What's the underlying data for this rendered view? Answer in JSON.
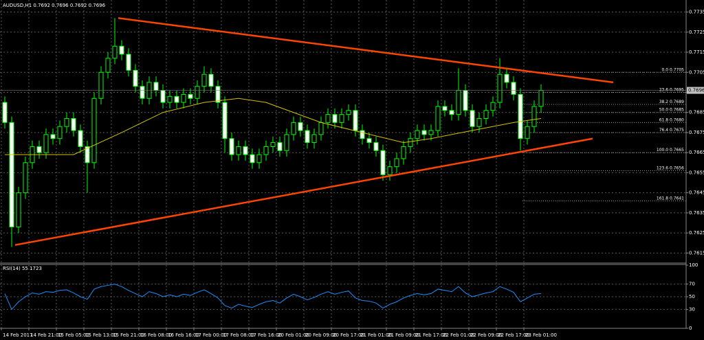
{
  "chart_data": {
    "type": "candlestick",
    "title": "AUDUSD,H1 0.7692 0.7696 0.7692 0.7696",
    "categories": [
      "14 Feb 2017",
      null,
      null,
      null,
      "14 Feb 21:00",
      null,
      null,
      null,
      "15 Feb 05:00",
      null,
      null,
      null,
      "15 Feb 13:00",
      null,
      null,
      null,
      "15 Feb 21:00",
      null,
      null,
      null,
      "16 Feb 08:00",
      null,
      null,
      null,
      "16 Feb 16:00",
      null,
      null,
      null,
      "17 Feb 00:00",
      null,
      null,
      null,
      "17 Feb 08:00",
      null,
      null,
      null,
      "17 Feb 16:00",
      null,
      null,
      null,
      "20 Feb 01:00",
      null,
      null,
      null,
      "20 Feb 09:00",
      null,
      null,
      null,
      "20 Feb 17:00",
      null,
      null,
      null,
      "21 Feb 01:00",
      null,
      null,
      null,
      "21 Feb 09:00",
      null,
      null,
      null,
      "21 Feb 17:00",
      null,
      null,
      null,
      "22 Feb 01:00",
      null,
      null,
      null,
      "22 Feb 09:00",
      null,
      null,
      null,
      "22 Feb 17:00",
      null,
      null,
      null,
      "23 Feb 01:00",
      null,
      null
    ],
    "candles": [
      [
        0.769,
        0.7693,
        0.7677,
        0.768
      ],
      [
        0.768,
        0.7683,
        0.7618,
        0.7628
      ],
      [
        0.7628,
        0.7648,
        0.7625,
        0.7645
      ],
      [
        0.7645,
        0.7663,
        0.7642,
        0.766
      ],
      [
        0.766,
        0.7671,
        0.7657,
        0.7668
      ],
      [
        0.7668,
        0.7671,
        0.7662,
        0.7665
      ],
      [
        0.7665,
        0.7677,
        0.7662,
        0.7674
      ],
      [
        0.7674,
        0.7677,
        0.7669,
        0.7672
      ],
      [
        0.7672,
        0.7681,
        0.7669,
        0.7678
      ],
      [
        0.7678,
        0.7685,
        0.7675,
        0.7682
      ],
      [
        0.7682,
        0.7685,
        0.7673,
        0.7676
      ],
      [
        0.7676,
        0.7679,
        0.7665,
        0.7668
      ],
      [
        0.7668,
        0.7671,
        0.7645,
        0.766
      ],
      [
        0.766,
        0.7695,
        0.7657,
        0.7692
      ],
      [
        0.7692,
        0.7708,
        0.7689,
        0.7705
      ],
      [
        0.7705,
        0.7715,
        0.7702,
        0.7712
      ],
      [
        0.7712,
        0.7732,
        0.7709,
        0.7718
      ],
      [
        0.7718,
        0.7721,
        0.7711,
        0.7714
      ],
      [
        0.7714,
        0.7717,
        0.7703,
        0.7706
      ],
      [
        0.7706,
        0.7709,
        0.7695,
        0.7698
      ],
      [
        0.7698,
        0.7701,
        0.7689,
        0.7692
      ],
      [
        0.7692,
        0.7703,
        0.7689,
        0.77
      ],
      [
        0.77,
        0.7703,
        0.7693,
        0.7696
      ],
      [
        0.7696,
        0.7699,
        0.7687,
        0.769
      ],
      [
        0.769,
        0.7696,
        0.7687,
        0.7693
      ],
      [
        0.7693,
        0.7696,
        0.7687,
        0.769
      ],
      [
        0.769,
        0.7697,
        0.7687,
        0.7694
      ],
      [
        0.7694,
        0.7697,
        0.7689,
        0.7692
      ],
      [
        0.7692,
        0.7701,
        0.7689,
        0.7698
      ],
      [
        0.7698,
        0.7708,
        0.7695,
        0.7704
      ],
      [
        0.7704,
        0.7707,
        0.7695,
        0.7698
      ],
      [
        0.7698,
        0.7701,
        0.7687,
        0.769
      ],
      [
        0.769,
        0.7693,
        0.7665,
        0.7672
      ],
      [
        0.7672,
        0.7675,
        0.7661,
        0.7664
      ],
      [
        0.7664,
        0.7671,
        0.7661,
        0.7668
      ],
      [
        0.7668,
        0.7671,
        0.7661,
        0.7664
      ],
      [
        0.7664,
        0.7667,
        0.7657,
        0.766
      ],
      [
        0.766,
        0.7667,
        0.7657,
        0.7664
      ],
      [
        0.7664,
        0.7671,
        0.7661,
        0.7668
      ],
      [
        0.7668,
        0.7673,
        0.7665,
        0.767
      ],
      [
        0.767,
        0.7673,
        0.7663,
        0.7666
      ],
      [
        0.7666,
        0.7677,
        0.7663,
        0.7674
      ],
      [
        0.7674,
        0.7683,
        0.7671,
        0.768
      ],
      [
        0.768,
        0.7683,
        0.7673,
        0.7676
      ],
      [
        0.7676,
        0.7679,
        0.7667,
        0.767
      ],
      [
        0.767,
        0.7677,
        0.7667,
        0.7674
      ],
      [
        0.7674,
        0.7683,
        0.7671,
        0.768
      ],
      [
        0.768,
        0.7687,
        0.7677,
        0.7684
      ],
      [
        0.7684,
        0.7687,
        0.7677,
        0.768
      ],
      [
        0.768,
        0.7687,
        0.7677,
        0.7684
      ],
      [
        0.7684,
        0.7689,
        0.7681,
        0.7686
      ],
      [
        0.7686,
        0.7689,
        0.7673,
        0.7676
      ],
      [
        0.7676,
        0.7679,
        0.7669,
        0.7672
      ],
      [
        0.7672,
        0.7675,
        0.7667,
        0.767
      ],
      [
        0.767,
        0.7673,
        0.7663,
        0.7666
      ],
      [
        0.7666,
        0.7669,
        0.7651,
        0.7654
      ],
      [
        0.7654,
        0.7661,
        0.7651,
        0.7658
      ],
      [
        0.7658,
        0.7665,
        0.7655,
        0.7662
      ],
      [
        0.7662,
        0.7671,
        0.7659,
        0.7668
      ],
      [
        0.7668,
        0.7675,
        0.7665,
        0.7672
      ],
      [
        0.7672,
        0.7679,
        0.7669,
        0.7676
      ],
      [
        0.7676,
        0.7679,
        0.7671,
        0.7674
      ],
      [
        0.7674,
        0.7679,
        0.7671,
        0.7676
      ],
      [
        0.7676,
        0.7691,
        0.7673,
        0.7688
      ],
      [
        0.7688,
        0.7691,
        0.7683,
        0.7686
      ],
      [
        0.7686,
        0.7689,
        0.7681,
        0.7684
      ],
      [
        0.7684,
        0.7707,
        0.7681,
        0.7696
      ],
      [
        0.7696,
        0.7699,
        0.7683,
        0.7686
      ],
      [
        0.7686,
        0.7689,
        0.7675,
        0.7678
      ],
      [
        0.7678,
        0.7685,
        0.7675,
        0.7682
      ],
      [
        0.7682,
        0.7689,
        0.7679,
        0.7686
      ],
      [
        0.7686,
        0.7693,
        0.7683,
        0.769
      ],
      [
        0.769,
        0.7712,
        0.7687,
        0.7704
      ],
      [
        0.7704,
        0.7707,
        0.7697,
        0.77
      ],
      [
        0.77,
        0.7703,
        0.7691,
        0.7694
      ],
      [
        0.7694,
        0.7697,
        0.7666,
        0.7672
      ],
      [
        0.7672,
        0.7681,
        0.7669,
        0.7678
      ],
      [
        0.7678,
        0.7691,
        0.7675,
        0.7688
      ],
      [
        0.7688,
        0.7699,
        0.7685,
        0.7696
      ]
    ],
    "up_color": "#00ff00",
    "ylim": [
      0.761,
      0.7741
    ],
    "yticks": [
      0.7735,
      0.7725,
      0.7715,
      0.7705,
      0.7695,
      0.7685,
      0.7675,
      0.7665,
      0.7655,
      0.7645,
      0.7635,
      0.7625,
      0.7615
    ],
    "last_price": 0.7696,
    "ma": {
      "color": "#d4c400",
      "x": [
        0,
        10,
        17,
        23,
        29,
        34,
        38,
        42,
        46,
        52,
        58,
        62,
        68,
        74,
        78
      ],
      "values": [
        0.7664,
        0.7664,
        0.7675,
        0.7685,
        0.769,
        0.7692,
        0.769,
        0.7685,
        0.768,
        0.7675,
        0.767,
        0.7672,
        0.7676,
        0.768,
        0.7682
      ]
    },
    "trendlines": [
      {
        "color": "#ff4500",
        "x": [
          16.5,
          88.5
        ],
        "y": [
          0.7732,
          0.77
        ]
      },
      {
        "color": "#ff4500",
        "x": [
          1.5,
          85.5
        ],
        "y": [
          0.7619,
          0.7672
        ]
      }
    ],
    "fib": [
      {
        "level": "0.0",
        "price": 0.7705
      },
      {
        "level": "23.6",
        "price": 0.7695
      },
      {
        "level": "38.2",
        "price": 0.7689
      },
      {
        "level": "50.0",
        "price": 0.7685
      },
      {
        "level": "61.8",
        "price": {
          "value": 0.768,
          "label": "0.7680"
        }
      },
      {
        "level": "76.4",
        "price": 0.7675
      },
      {
        "level": "100.0",
        "price": 0.7665
      },
      {
        "level": "123.6",
        "price": 0.7656
      },
      {
        "level": "161.8",
        "price": 0.7641
      }
    ],
    "rsi": {
      "label": "RSI(14) 55.1723",
      "color": "#1e90ff",
      "ylim": [
        0,
        100
      ],
      "yticks": [
        100,
        70,
        50,
        30,
        0
      ],
      "values": [
        55,
        30,
        42,
        50,
        56,
        54,
        58,
        57,
        60,
        61,
        56,
        50,
        46,
        62,
        66,
        68,
        70,
        66,
        60,
        55,
        50,
        58,
        55,
        50,
        53,
        50,
        54,
        52,
        57,
        61,
        55,
        48,
        36,
        32,
        38,
        35,
        33,
        38,
        42,
        44,
        40,
        48,
        54,
        50,
        45,
        49,
        54,
        58,
        54,
        57,
        59,
        48,
        44,
        43,
        40,
        32,
        38,
        42,
        48,
        52,
        55,
        53,
        55,
        62,
        60,
        58,
        66,
        56,
        50,
        53,
        56,
        58,
        66,
        62,
        57,
        42,
        48,
        54,
        55
      ]
    },
    "grid": true
  }
}
